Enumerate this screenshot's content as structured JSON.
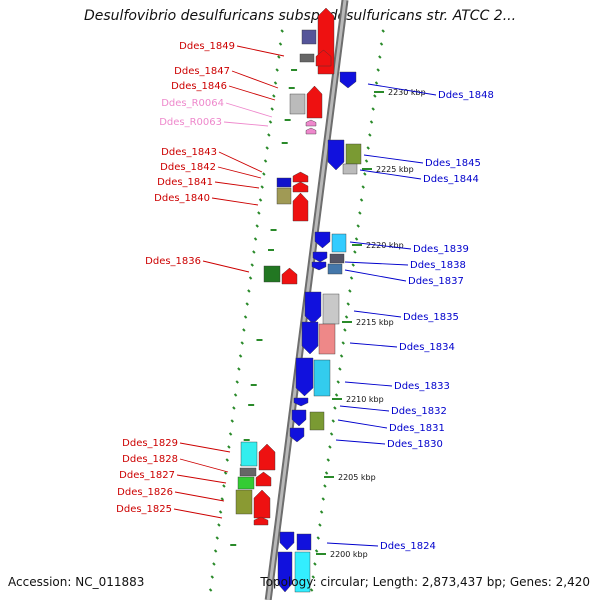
{
  "title": "Desulfovibrio desulfuricans subsp. desulfuricans str. ATCC 2...",
  "accession": "Accession: NC_011883",
  "summary": "Topology: circular; Length: 2,873,437 bp; Genes: 2,420",
  "colors": {
    "backbone": "#8a8a8a",
    "left_label": "#cc0000",
    "left_label_rna": "#ee88cc",
    "right_label": "#0000cc",
    "tick": "#2a8a2a"
  },
  "scale_labels": [
    "2230 kbp",
    "2225 kbp",
    "2220 kbp",
    "2215 kbp",
    "2210 kbp",
    "2205 kbp",
    "2200 kbp"
  ],
  "left_genes": [
    "Ddes_1849",
    "Ddes_1847",
    "Ddes_1846",
    "Ddes_R0064",
    "Ddes_R0063",
    "Ddes_1843",
    "Ddes_1842",
    "Ddes_1841",
    "Ddes_1840",
    "Ddes_1836",
    "Ddes_1829",
    "Ddes_1828",
    "Ddes_1827",
    "Ddes_1826",
    "Ddes_1825"
  ],
  "right_genes": [
    "Ddes_1848",
    "Ddes_1845",
    "Ddes_1844",
    "Ddes_1839",
    "Ddes_1838",
    "Ddes_1837",
    "Ddes_1835",
    "Ddes_1834",
    "Ddes_1833",
    "Ddes_1832",
    "Ddes_1831",
    "Ddes_1830",
    "Ddes_1824"
  ]
}
